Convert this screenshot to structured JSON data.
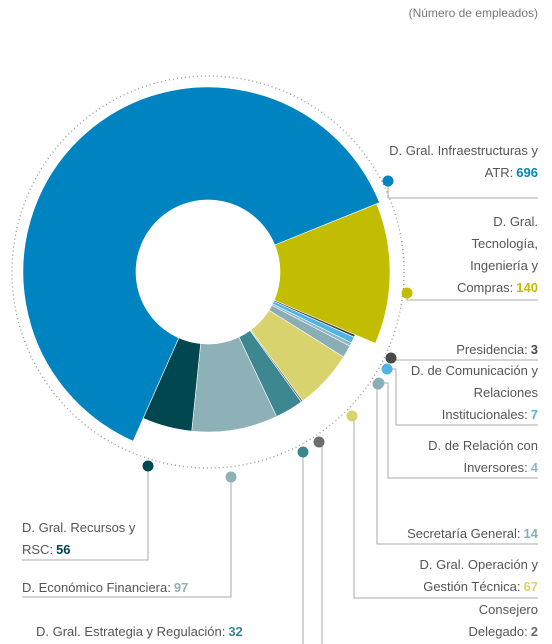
{
  "chart_data": {
    "type": "donut",
    "subtitle": "(Número de empleados)",
    "categories": [
      "D. Gral. Infraestructuras y ATR:",
      "D. Gral. Tecnología, Ingeniería y Compras:",
      "Presidencia:",
      "D. de Comunicación y Relaciones Institucionales:",
      "D. de Relación con Inversores:",
      "Secretaría General:",
      "D. Gral. Operación y Gestión Técnica:",
      "Consejero Delegado:",
      "D. Gral. Estrategia y Regulación:",
      "D. Económico Financiera:",
      "D. Gral. Recursos y RSC:"
    ],
    "values": [
      696,
      140,
      3,
      7,
      4,
      14,
      67,
      2,
      32,
      97,
      56
    ],
    "colors": [
      "#0083c1",
      "#c3bd00",
      "#4a4a4a",
      "#4fb5e6",
      "#8fb8c6",
      "#8aaeb6",
      "#d8d36c",
      "#6d6d6d",
      "#3c8790",
      "#8eb1b8",
      "#00474f"
    ]
  }
}
